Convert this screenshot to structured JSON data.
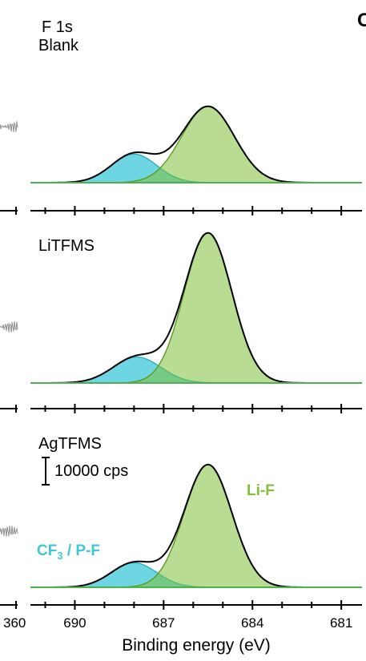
{
  "chart_data": {
    "type": "area",
    "element_label": "F 1s",
    "xlabel": "Binding energy (eV)",
    "x_reversed": true,
    "xlim": [
      691.5,
      680.3
    ],
    "x_ticks": [
      690,
      687,
      684,
      681
    ],
    "x_tick_labels": [
      "690",
      "687",
      "684",
      "681"
    ],
    "left_cut_tick_label": "360",
    "corner_letter": "C",
    "scale_bar_label": "10000 cps",
    "scale_bar_cps": 10000,
    "component_labels": [
      "CF₃ / P-F",
      "Li-F"
    ],
    "annotation_cf3_main": "CF",
    "annotation_cf3_sub": "3",
    "annotation_cf3_rest": " / P-F",
    "annotation_lif": "Li-F",
    "colors": {
      "cf3": "#3cc8d8",
      "lif": "#7fbf3a",
      "envelope": "#000000",
      "raw": "#909090"
    },
    "panels": [
      {
        "name": "Blank",
        "components": [
          {
            "name": "CF₃ / P-F",
            "center": 688.0,
            "fwhm": 1.8,
            "height": 10500
          },
          {
            "name": "Li-F",
            "center": 685.5,
            "fwhm": 2.1,
            "height": 28000
          }
        ]
      },
      {
        "name": "LiTFMS",
        "components": [
          {
            "name": "CF₃ / P-F",
            "center": 687.9,
            "fwhm": 1.9,
            "height": 9500
          },
          {
            "name": "Li-F",
            "center": 685.5,
            "fwhm": 1.9,
            "height": 55000
          }
        ]
      },
      {
        "name": "AgTFMS",
        "components": [
          {
            "name": "CF₃ / P-F",
            "center": 688.0,
            "fwhm": 1.8,
            "height": 9000
          },
          {
            "name": "Li-F",
            "center": 685.5,
            "fwhm": 1.9,
            "height": 45000
          }
        ]
      }
    ]
  }
}
